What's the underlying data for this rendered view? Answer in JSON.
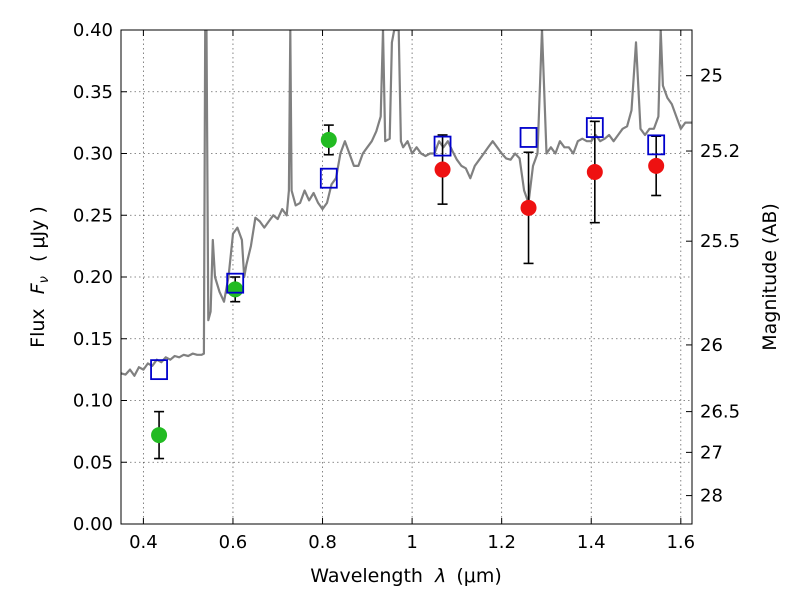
{
  "chart_data": {
    "type": "scatter",
    "xlabel": "Wavelength",
    "xlabel_symbol": "λ",
    "xlabel_unit": "(μm)",
    "ylabel": "Flux",
    "ylabel_symbol": "F",
    "ylabel_subscript": "ν",
    "ylabel_unit": "( μJy )",
    "y2label": "Magnitude (AB)",
    "xlim": [
      0.35,
      1.625
    ],
    "ylim": [
      0.0,
      0.4
    ],
    "grid": true,
    "xticks": [
      0.4,
      0.6,
      0.8,
      1.0,
      1.2,
      1.4,
      1.6
    ],
    "xtick_labels": [
      "0.4",
      "0.6",
      "0.8",
      "1",
      "1.2",
      "1.4",
      "1.6"
    ],
    "yticks": [
      0.0,
      0.05,
      0.1,
      0.15,
      0.2,
      0.25,
      0.3,
      0.35,
      0.4
    ],
    "ytick_labels": [
      "0.00",
      "0.05",
      "0.10",
      "0.15",
      "0.20",
      "0.25",
      "0.30",
      "0.35",
      "0.40"
    ],
    "y2ticks": [
      {
        "label": "25",
        "flux": 0.363
      },
      {
        "label": "25.2",
        "flux": 0.302
      },
      {
        "label": "25.5",
        "flux": 0.229
      },
      {
        "label": "26",
        "flux": 0.145
      },
      {
        "label": "26.5",
        "flux": 0.091
      },
      {
        "label": "27",
        "flux": 0.058
      },
      {
        "label": "28",
        "flux": 0.023
      }
    ],
    "series": [
      {
        "kind": "line",
        "color": "#808080",
        "points": [
          [
            0.35,
            0.122
          ],
          [
            0.36,
            0.121
          ],
          [
            0.37,
            0.125
          ],
          [
            0.38,
            0.12
          ],
          [
            0.39,
            0.127
          ],
          [
            0.4,
            0.125
          ],
          [
            0.41,
            0.13
          ],
          [
            0.42,
            0.128
          ],
          [
            0.43,
            0.133
          ],
          [
            0.44,
            0.131
          ],
          [
            0.45,
            0.135
          ],
          [
            0.46,
            0.133
          ],
          [
            0.47,
            0.136
          ],
          [
            0.48,
            0.135
          ],
          [
            0.49,
            0.137
          ],
          [
            0.5,
            0.136
          ],
          [
            0.51,
            0.138
          ],
          [
            0.52,
            0.137
          ],
          [
            0.53,
            0.137
          ],
          [
            0.535,
            0.138
          ],
          [
            0.538,
            0.4
          ],
          [
            0.541,
            0.4
          ],
          [
            0.545,
            0.165
          ],
          [
            0.55,
            0.172
          ],
          [
            0.555,
            0.23
          ],
          [
            0.56,
            0.2
          ],
          [
            0.57,
            0.188
          ],
          [
            0.58,
            0.18
          ],
          [
            0.59,
            0.2
          ],
          [
            0.6,
            0.235
          ],
          [
            0.61,
            0.24
          ],
          [
            0.62,
            0.23
          ],
          [
            0.625,
            0.2
          ],
          [
            0.63,
            0.21
          ],
          [
            0.64,
            0.225
          ],
          [
            0.65,
            0.248
          ],
          [
            0.66,
            0.245
          ],
          [
            0.67,
            0.24
          ],
          [
            0.68,
            0.245
          ],
          [
            0.69,
            0.25
          ],
          [
            0.7,
            0.247
          ],
          [
            0.71,
            0.255
          ],
          [
            0.72,
            0.25
          ],
          [
            0.725,
            0.27
          ],
          [
            0.728,
            0.4
          ],
          [
            0.731,
            0.27
          ],
          [
            0.74,
            0.258
          ],
          [
            0.75,
            0.26
          ],
          [
            0.76,
            0.27
          ],
          [
            0.77,
            0.262
          ],
          [
            0.78,
            0.268
          ],
          [
            0.79,
            0.26
          ],
          [
            0.8,
            0.255
          ],
          [
            0.81,
            0.26
          ],
          [
            0.82,
            0.275
          ],
          [
            0.83,
            0.28
          ],
          [
            0.84,
            0.3
          ],
          [
            0.85,
            0.31
          ],
          [
            0.86,
            0.3
          ],
          [
            0.87,
            0.29
          ],
          [
            0.88,
            0.29
          ],
          [
            0.89,
            0.3
          ],
          [
            0.9,
            0.305
          ],
          [
            0.91,
            0.31
          ],
          [
            0.92,
            0.318
          ],
          [
            0.93,
            0.33
          ],
          [
            0.935,
            0.4
          ],
          [
            0.94,
            0.31
          ],
          [
            0.95,
            0.312
          ],
          [
            0.955,
            0.39
          ],
          [
            0.96,
            0.4
          ],
          [
            0.965,
            0.4
          ],
          [
            0.97,
            0.4
          ],
          [
            0.975,
            0.31
          ],
          [
            0.98,
            0.305
          ],
          [
            0.99,
            0.31
          ],
          [
            1.0,
            0.3
          ],
          [
            1.01,
            0.305
          ],
          [
            1.02,
            0.3
          ],
          [
            1.03,
            0.298
          ],
          [
            1.04,
            0.3
          ],
          [
            1.05,
            0.3
          ],
          [
            1.06,
            0.31
          ],
          [
            1.07,
            0.305
          ],
          [
            1.08,
            0.31
          ],
          [
            1.09,
            0.302
          ],
          [
            1.1,
            0.295
          ],
          [
            1.11,
            0.29
          ],
          [
            1.12,
            0.288
          ],
          [
            1.13,
            0.28
          ],
          [
            1.14,
            0.29
          ],
          [
            1.15,
            0.295
          ],
          [
            1.16,
            0.3
          ],
          [
            1.17,
            0.305
          ],
          [
            1.18,
            0.31
          ],
          [
            1.19,
            0.305
          ],
          [
            1.2,
            0.3
          ],
          [
            1.21,
            0.296
          ],
          [
            1.22,
            0.295
          ],
          [
            1.23,
            0.3
          ],
          [
            1.24,
            0.296
          ],
          [
            1.25,
            0.27
          ],
          [
            1.26,
            0.26
          ],
          [
            1.27,
            0.29
          ],
          [
            1.28,
            0.3
          ],
          [
            1.29,
            0.4
          ],
          [
            1.3,
            0.3
          ],
          [
            1.31,
            0.305
          ],
          [
            1.32,
            0.3
          ],
          [
            1.33,
            0.31
          ],
          [
            1.34,
            0.305
          ],
          [
            1.35,
            0.305
          ],
          [
            1.36,
            0.3
          ],
          [
            1.37,
            0.31
          ],
          [
            1.38,
            0.312
          ],
          [
            1.39,
            0.31
          ],
          [
            1.4,
            0.31
          ],
          [
            1.41,
            0.315
          ],
          [
            1.42,
            0.31
          ],
          [
            1.43,
            0.312
          ],
          [
            1.44,
            0.315
          ],
          [
            1.45,
            0.31
          ],
          [
            1.46,
            0.315
          ],
          [
            1.47,
            0.32
          ],
          [
            1.48,
            0.322
          ],
          [
            1.49,
            0.335
          ],
          [
            1.5,
            0.39
          ],
          [
            1.51,
            0.32
          ],
          [
            1.52,
            0.315
          ],
          [
            1.53,
            0.32
          ],
          [
            1.54,
            0.32
          ],
          [
            1.55,
            0.33
          ],
          [
            1.555,
            0.4
          ],
          [
            1.56,
            0.355
          ],
          [
            1.57,
            0.345
          ],
          [
            1.58,
            0.34
          ],
          [
            1.59,
            0.33
          ],
          [
            1.6,
            0.32
          ],
          [
            1.61,
            0.325
          ],
          [
            1.625,
            0.325
          ]
        ]
      },
      {
        "kind": "points",
        "marker": "circle",
        "color": "#22bb22",
        "points": [
          {
            "x": 0.435,
            "y": 0.072,
            "err": 0.019
          },
          {
            "x": 0.605,
            "y": 0.19,
            "err": 0.01
          },
          {
            "x": 0.814,
            "y": 0.311,
            "err": 0.012
          }
        ]
      },
      {
        "kind": "points",
        "marker": "circle",
        "color": "#ee1111",
        "points": [
          {
            "x": 1.068,
            "y": 0.287,
            "err": 0.028
          },
          {
            "x": 1.26,
            "y": 0.256,
            "err": 0.045
          },
          {
            "x": 1.408,
            "y": 0.285,
            "err": 0.041
          },
          {
            "x": 1.545,
            "y": 0.29,
            "err": 0.024
          }
        ]
      },
      {
        "kind": "points",
        "marker": "open-square",
        "color": "#0000cc",
        "points": [
          {
            "x": 0.435,
            "y": 0.125
          },
          {
            "x": 0.605,
            "y": 0.195
          },
          {
            "x": 0.814,
            "y": 0.28
          },
          {
            "x": 1.068,
            "y": 0.306
          },
          {
            "x": 1.26,
            "y": 0.313
          },
          {
            "x": 1.408,
            "y": 0.321
          },
          {
            "x": 1.545,
            "y": 0.307
          }
        ]
      }
    ]
  }
}
